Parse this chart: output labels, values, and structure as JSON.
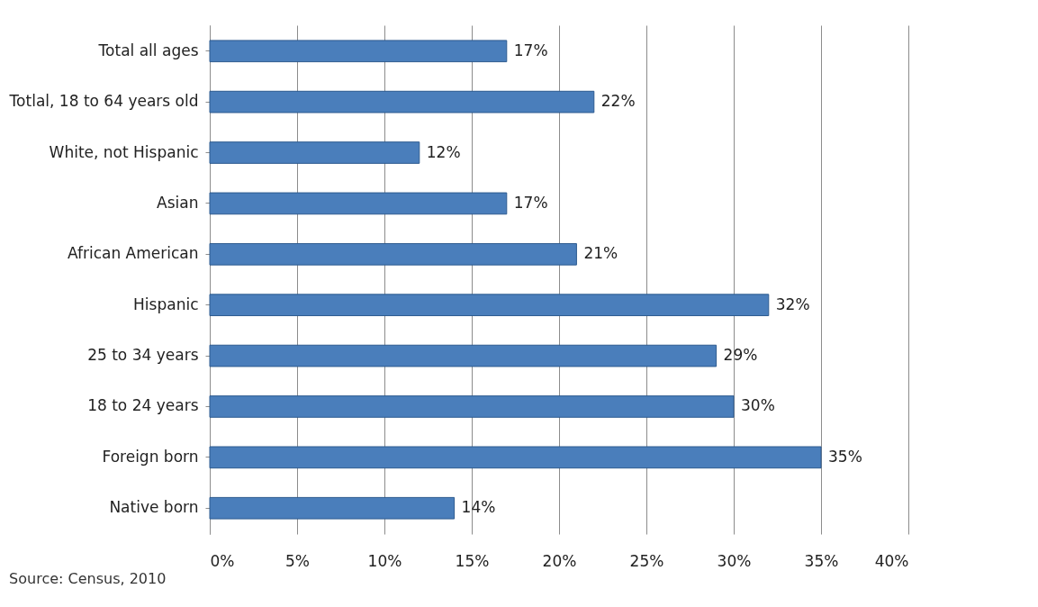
{
  "chart_data": {
    "type": "bar",
    "orientation": "horizontal",
    "categories": [
      "Total all ages",
      "Totlal, 18 to 64 years old",
      "White, not Hispanic",
      "Asian",
      "African American",
      "Hispanic",
      "25 to 34 years",
      "18 to 24 years",
      "Foreign born",
      "Native born"
    ],
    "values": [
      17,
      22,
      12,
      17,
      21,
      32,
      29,
      30,
      35,
      14
    ],
    "value_labels": [
      "17%",
      "22%",
      "12%",
      "17%",
      "21%",
      "32%",
      "29%",
      "30%",
      "35%",
      "14%"
    ],
    "color": "#4a7ebb",
    "xlim": [
      0,
      40
    ],
    "xticks": [
      {
        "value": 0,
        "label": "0%"
      },
      {
        "value": 5,
        "label": "5%"
      },
      {
        "value": 10,
        "label": "10%"
      },
      {
        "value": 15,
        "label": "15%"
      },
      {
        "value": 20,
        "label": "20%"
      },
      {
        "value": 25,
        "label": "25%"
      },
      {
        "value": 30,
        "label": "30%"
      },
      {
        "value": 35,
        "label": "35%"
      },
      {
        "value": 40,
        "label": "40%"
      }
    ],
    "grid": "x",
    "annotations": [
      "Source: Census, 2010"
    ]
  }
}
